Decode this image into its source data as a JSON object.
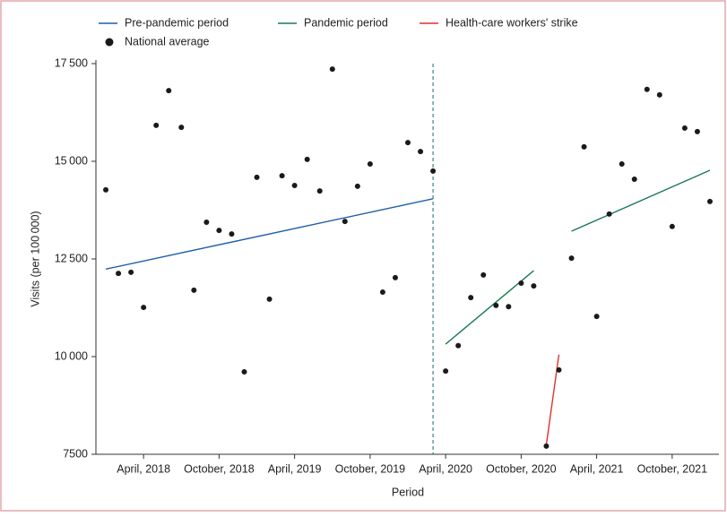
{
  "chart_data": {
    "type": "line",
    "ylabel": "Visits (per 100 000)",
    "xlabel": "Period",
    "ylim": [
      7500,
      17500
    ],
    "yticks": [
      {
        "value": 7500,
        "label": "7500"
      },
      {
        "value": 10000,
        "label": "10 000"
      },
      {
        "value": 12500,
        "label": "12 500"
      },
      {
        "value": 15000,
        "label": "15 000"
      },
      {
        "value": 17500,
        "label": "17 500"
      }
    ],
    "xlim": [
      "2017-12",
      "2022-02"
    ],
    "xticks": [
      {
        "value": "2018-04",
        "label": "April, 2018"
      },
      {
        "value": "2018-10",
        "label": "October, 2018"
      },
      {
        "value": "2019-04",
        "label": "April, 2019"
      },
      {
        "value": "2019-10",
        "label": "October, 2019"
      },
      {
        "value": "2020-04",
        "label": "April, 2020"
      },
      {
        "value": "2020-10",
        "label": "October, 2020"
      },
      {
        "value": "2021-04",
        "label": "April, 2021"
      },
      {
        "value": "2021-10",
        "label": "October, 2021"
      }
    ],
    "divider_x": "2020-03",
    "series": [
      {
        "name": "Pre-pandemic period",
        "color": "#1f5fa8",
        "mode": "line",
        "x": [
          "2018-01",
          "2020-03"
        ],
        "values": [
          12240,
          14040
        ]
      },
      {
        "name": "Pandemic period",
        "color": "#1a7a50",
        "mode": "line",
        "x": [
          "2020-04",
          "2020-11",
          "2020-12",
          "2021-02",
          "2022-01"
        ],
        "values": [
          10320,
          12200,
          null,
          13210,
          14770
        ]
      },
      {
        "name": "Health-care workers' strike",
        "color": "#e0312a",
        "mode": "line",
        "x": [
          "2020-12",
          "2021-01"
        ],
        "values": [
          7740,
          10050
        ]
      },
      {
        "name": "National average",
        "color": "#1a1a1a",
        "mode": "markers",
        "x": [
          "2018-01",
          "2018-02",
          "2018-03",
          "2018-04",
          "2018-05",
          "2018-06",
          "2018-07",
          "2018-08",
          "2018-09",
          "2018-10",
          "2018-11",
          "2018-12",
          "2019-01",
          "2019-02",
          "2019-03",
          "2019-04",
          "2019-05",
          "2019-06",
          "2019-07",
          "2019-08",
          "2019-09",
          "2019-10",
          "2019-11",
          "2019-12",
          "2020-01",
          "2020-02",
          "2020-03",
          "2020-04",
          "2020-05",
          "2020-06",
          "2020-07",
          "2020-08",
          "2020-09",
          "2020-10",
          "2020-11",
          "2020-12",
          "2021-01",
          "2021-02",
          "2021-03",
          "2021-04",
          "2021-05",
          "2021-06",
          "2021-07",
          "2021-08",
          "2021-09",
          "2021-10",
          "2021-11",
          "2021-12",
          "2022-01"
        ],
        "values": [
          14270,
          12130,
          12160,
          11260,
          15920,
          16810,
          15870,
          11700,
          13440,
          13230,
          13140,
          9610,
          14590,
          11470,
          14630,
          14380,
          15050,
          14240,
          17360,
          13460,
          14360,
          14930,
          11650,
          12020,
          15480,
          15250,
          14750,
          9630,
          10280,
          11510,
          12090,
          11310,
          11280,
          11880,
          11810,
          7710,
          9660,
          12520,
          15370,
          11030,
          13650,
          14930,
          14540,
          16840,
          16700,
          13330,
          15850,
          15760,
          13970
        ]
      }
    ]
  }
}
